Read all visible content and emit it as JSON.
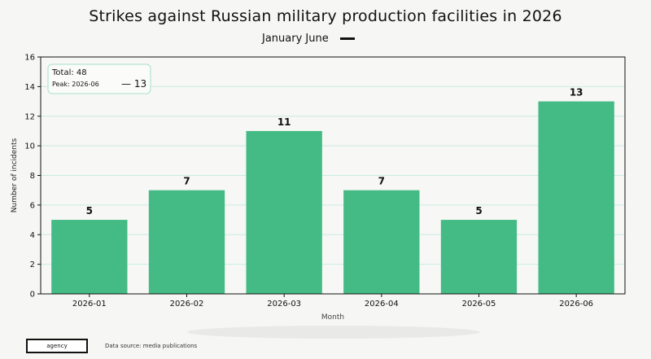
{
  "colors": {
    "bar": "#44bb84",
    "grid": "#c8ece4",
    "axis": "#111111",
    "legend_border": "#a6e0d0",
    "background": "#f6f6f4"
  },
  "footer": {
    "badge": "agency",
    "source": "Data source: media publications"
  },
  "chart_data": {
    "type": "bar",
    "title": "Strikes against Russian military production facilities in 2026",
    "subtitle": "January June",
    "xlabel": "Month",
    "ylabel": "Number of incidents",
    "categories": [
      "2026-01",
      "2026-02",
      "2026-03",
      "2026-04",
      "2026-05",
      "2026-06"
    ],
    "values": [
      5,
      7,
      11,
      7,
      5,
      13
    ],
    "data_labels": [
      "5",
      "7",
      "11",
      "7",
      "5",
      "13"
    ],
    "ylim": [
      0,
      16
    ],
    "yticks": [
      0,
      2,
      4,
      6,
      8,
      10,
      12,
      14,
      16
    ],
    "grid": true,
    "legend": {
      "placement": "top-left",
      "total": "Total: 48",
      "peak": "Peak: 2026-06",
      "peak_value": "— 13"
    }
  }
}
